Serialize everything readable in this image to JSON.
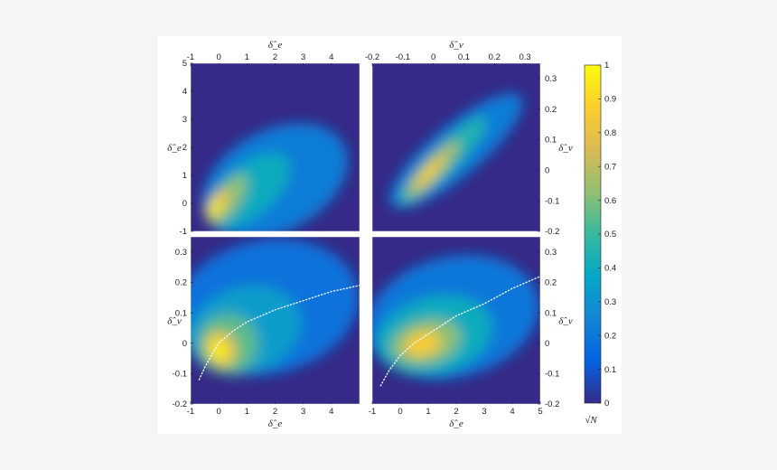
{
  "chart_data": [
    {
      "type": "heatmap",
      "panel": "top-left",
      "xlabel": "δ̂_e",
      "ylabel": "δ̂_e",
      "x_axis_position": "top",
      "y_axis_position": "left",
      "xlim": [
        -1,
        5
      ],
      "ylim": [
        -1,
        5
      ],
      "xticks": [
        "-1",
        "0",
        "1",
        "2",
        "3",
        "4"
      ],
      "yticks": [
        "-1",
        "0",
        "1",
        "2",
        "3",
        "4",
        "5"
      ],
      "xtick_values": [
        -1,
        0,
        1,
        2,
        3,
        4
      ],
      "ytick_values": [
        -1,
        0,
        1,
        2,
        3,
        4,
        5
      ],
      "density_ridge": {
        "x": [
          -0.8,
          -0.5,
          -0.2,
          0.1,
          0.3,
          0.6,
          1.0,
          1.5,
          2.0,
          2.5,
          3.0,
          3.5,
          4.0
        ],
        "y": [
          -0.7,
          -0.1,
          0.4,
          0.8,
          1.0,
          1.25,
          1.5,
          1.75,
          1.95,
          2.05,
          2.05,
          2.0,
          1.95
        ]
      },
      "peak": {
        "x": -0.1,
        "y": 0.4,
        "value": 1.0
      }
    },
    {
      "type": "heatmap",
      "panel": "top-right",
      "xlabel": "δ̂_ν",
      "ylabel": "δ̂_ν",
      "x_axis_position": "top",
      "y_axis_position": "right",
      "xlim": [
        -0.2,
        0.35
      ],
      "ylim": [
        -0.2,
        0.35
      ],
      "xticks": [
        "-0.2",
        "-0.1",
        "0",
        "0.1",
        "0.2",
        "0.3"
      ],
      "yticks": [
        "-0.2",
        "-0.1",
        "0",
        "0.1",
        "0.2",
        "0.3"
      ],
      "xtick_values": [
        -0.2,
        -0.1,
        0,
        0.1,
        0.2,
        0.3
      ],
      "ytick_values": [
        -0.2,
        -0.1,
        0,
        0.1,
        0.2,
        0.3
      ],
      "density_ridge": {
        "x": [
          -0.19,
          -0.15,
          -0.1,
          -0.05,
          0,
          0.05,
          0.1,
          0.15,
          0.2,
          0.25,
          0.3
        ],
        "y": [
          -0.19,
          -0.15,
          -0.1,
          -0.04,
          0.02,
          0.07,
          0.12,
          0.16,
          0.19,
          0.21,
          0.22
        ]
      },
      "peak": {
        "x": 0.0,
        "y": 0.02,
        "value": 0.85
      }
    },
    {
      "type": "heatmap",
      "panel": "bottom-left",
      "xlabel": "δ̂_e",
      "ylabel": "δ̂_ν",
      "x_axis_position": "bottom",
      "y_axis_position": "left",
      "xlim": [
        -1,
        5
      ],
      "ylim": [
        -0.2,
        0.35
      ],
      "xticks": [
        "-1",
        "0",
        "1",
        "2",
        "3",
        "4"
      ],
      "yticks": [
        "-0.2",
        "-0.1",
        "0",
        "0.1",
        "0.2",
        "0.3"
      ],
      "xtick_values": [
        -1,
        0,
        1,
        2,
        3,
        4
      ],
      "ytick_values": [
        -0.2,
        -0.1,
        0,
        0.1,
        0.2,
        0.3
      ],
      "peak": {
        "x": 0.0,
        "y": 0.0,
        "value": 1.0
      },
      "dotted_curve": {
        "x": [
          -0.7,
          -0.5,
          -0.2,
          0.0,
          0.5,
          1.0,
          1.5,
          2.0,
          2.5,
          3.0,
          3.5,
          4.0,
          4.5,
          5.0
        ],
        "y": [
          -0.12,
          -0.08,
          -0.03,
          0.0,
          0.04,
          0.07,
          0.09,
          0.11,
          0.125,
          0.14,
          0.155,
          0.17,
          0.18,
          0.19
        ]
      }
    },
    {
      "type": "heatmap",
      "panel": "bottom-right",
      "xlabel": "δ̂_e",
      "ylabel": "δ̂_ν",
      "x_axis_position": "bottom",
      "y_axis_position": "right",
      "xlim": [
        -1,
        5
      ],
      "ylim": [
        -0.2,
        0.35
      ],
      "xticks": [
        "-1",
        "0",
        "1",
        "2",
        "3",
        "4",
        "5"
      ],
      "yticks": [
        "-0.2",
        "-0.1",
        "0",
        "0.1",
        "0.2",
        "0.3"
      ],
      "xtick_values": [
        -1,
        0,
        1,
        2,
        3,
        4,
        5
      ],
      "ytick_values": [
        -0.2,
        -0.1,
        0,
        0.1,
        0.2,
        0.3
      ],
      "peak": {
        "x": 1.0,
        "y": 0.03,
        "value": 0.9
      },
      "dotted_curve": {
        "x": [
          -0.7,
          -0.4,
          0.0,
          0.5,
          1.0,
          1.5,
          2.0,
          2.5,
          3.0,
          3.5,
          4.0,
          4.5,
          5.0
        ],
        "y": [
          -0.14,
          -0.09,
          -0.04,
          0.0,
          0.03,
          0.06,
          0.09,
          0.11,
          0.13,
          0.155,
          0.18,
          0.2,
          0.22
        ]
      }
    }
  ],
  "colorbar": {
    "label": "√N",
    "range": [
      0,
      1
    ],
    "ticks": [
      "0",
      "0.1",
      "0.2",
      "0.3",
      "0.4",
      "0.5",
      "0.6",
      "0.7",
      "0.8",
      "0.9",
      "1"
    ],
    "tick_values": [
      0,
      0.1,
      0.2,
      0.3,
      0.4,
      0.5,
      0.6,
      0.7,
      0.8,
      0.9,
      1
    ],
    "colormap": "parula",
    "stops": [
      "#352a87",
      "#0363e1",
      "#1485d4",
      "#06a7c6",
      "#38b99e",
      "#92bf73",
      "#d9ba56",
      "#fcce2e",
      "#f9fb0e"
    ]
  }
}
